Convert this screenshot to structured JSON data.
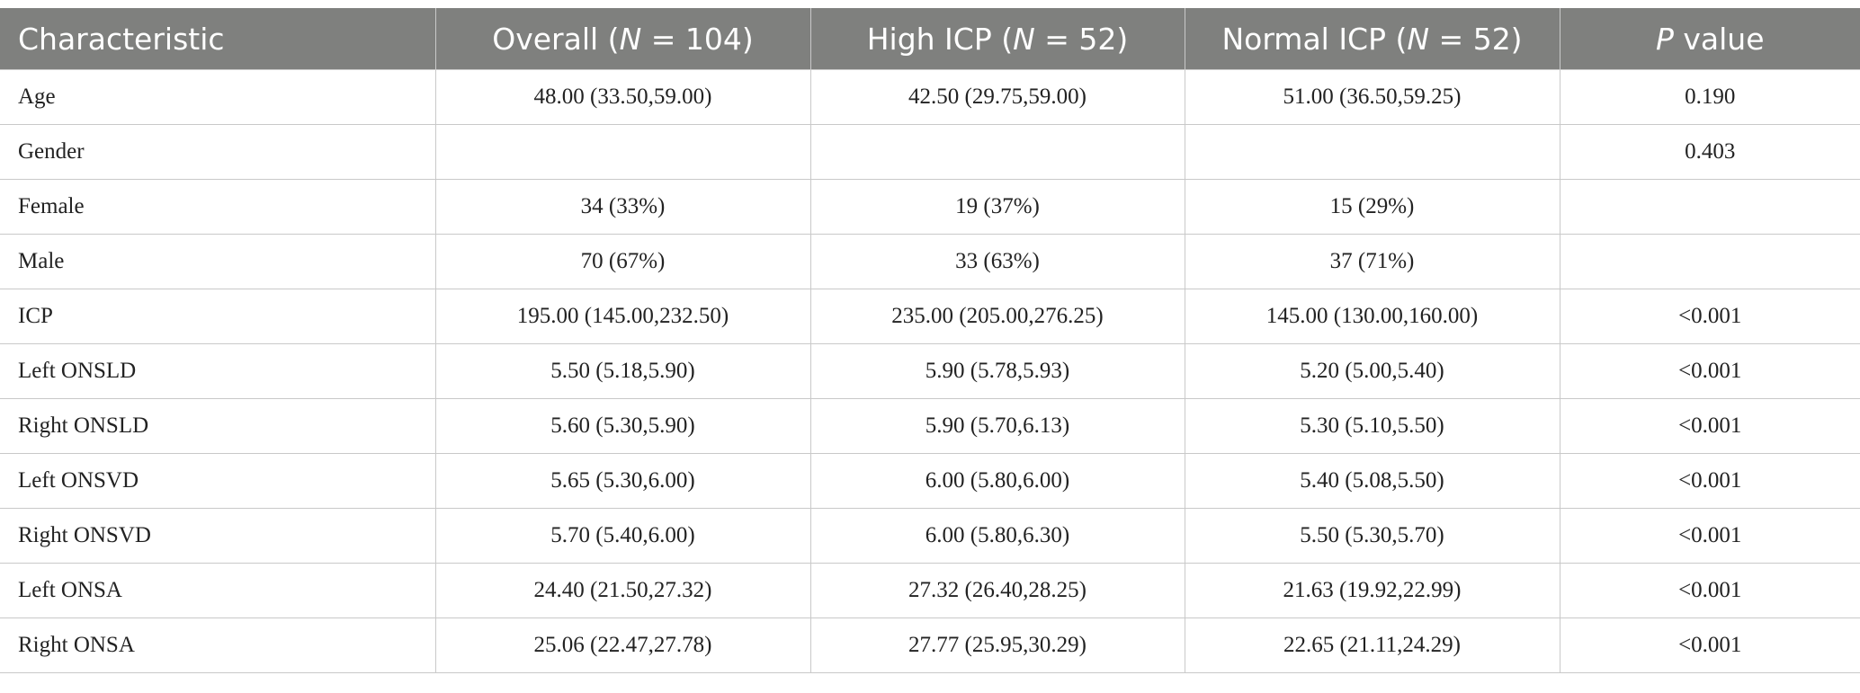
{
  "table": {
    "headers": [
      {
        "pre": "Characteristic",
        "ital": "",
        "post": ""
      },
      {
        "pre": "Overall (",
        "ital": "N",
        "post": " = 104)"
      },
      {
        "pre": "High ICP (",
        "ital": "N",
        "post": " = 52)"
      },
      {
        "pre": "Normal ICP (",
        "ital": "N",
        "post": " = 52)"
      },
      {
        "pre": "",
        "ital": "P",
        "post": " value"
      }
    ],
    "rows": [
      [
        "Age",
        "48.00 (33.50,59.00)",
        "42.50 (29.75,59.00)",
        "51.00 (36.50,59.25)",
        "0.190"
      ],
      [
        "Gender",
        "",
        "",
        "",
        "0.403"
      ],
      [
        "Female",
        "34 (33%)",
        "19 (37%)",
        "15 (29%)",
        ""
      ],
      [
        "Male",
        "70 (67%)",
        "33 (63%)",
        "37 (71%)",
        ""
      ],
      [
        "ICP",
        "195.00 (145.00,232.50)",
        "235.00 (205.00,276.25)",
        "145.00 (130.00,160.00)",
        "<0.001"
      ],
      [
        "Left ONSLD",
        "5.50 (5.18,5.90)",
        "5.90 (5.78,5.93)",
        "5.20 (5.00,5.40)",
        "<0.001"
      ],
      [
        "Right ONSLD",
        "5.60 (5.30,5.90)",
        "5.90 (5.70,6.13)",
        "5.30 (5.10,5.50)",
        "<0.001"
      ],
      [
        "Left ONSVD",
        "5.65 (5.30,6.00)",
        "6.00 (5.80,6.00)",
        "5.40 (5.08,5.50)",
        "<0.001"
      ],
      [
        "Right ONSVD",
        "5.70 (5.40,6.00)",
        "6.00 (5.80,6.30)",
        "5.50 (5.30,5.70)",
        "<0.001"
      ],
      [
        "Left ONSA",
        "24.40 (21.50,27.32)",
        "27.32 (26.40,28.25)",
        "21.63 (19.92,22.99)",
        "<0.001"
      ],
      [
        "Right ONSA",
        "25.06 (22.47,27.78)",
        "27.77 (25.95,30.29)",
        "22.65 (21.11,24.29)",
        "<0.001"
      ]
    ]
  }
}
